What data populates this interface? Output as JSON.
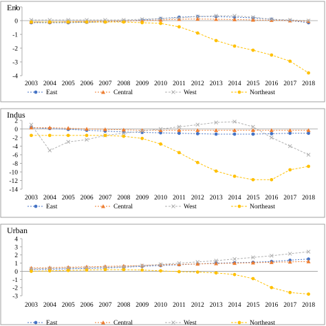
{
  "chart_data": [
    {
      "type": "line",
      "title": "Eno",
      "categories": [
        "2003",
        "2004",
        "2005",
        "2006",
        "2007",
        "2008",
        "2009",
        "2010",
        "2011",
        "2012",
        "2013",
        "2014",
        "2015",
        "2016",
        "2017",
        "2018"
      ],
      "ylim": [
        -4,
        1
      ],
      "yticks": [
        1,
        0,
        -1,
        -2,
        -3,
        -4
      ],
      "series": [
        {
          "name": "East",
          "color": "#4472c4",
          "marker": "circle",
          "dash": "2,2",
          "values": [
            -0.15,
            -0.15,
            -0.15,
            -0.12,
            -0.1,
            -0.05,
            0.05,
            0.15,
            0.25,
            0.3,
            0.3,
            0.25,
            0.2,
            0.1,
            0.0,
            -0.15
          ]
        },
        {
          "name": "Central",
          "color": "#ed7d31",
          "marker": "triangle",
          "dash": "2,2",
          "values": [
            -0.1,
            -0.1,
            -0.08,
            -0.06,
            -0.05,
            -0.03,
            0.0,
            0.05,
            0.1,
            0.12,
            0.1,
            0.08,
            0.05,
            0.03,
            0.0,
            -0.05
          ]
        },
        {
          "name": "West",
          "color": "#b0b0b0",
          "marker": "x",
          "dash": "3,2",
          "values": [
            0.05,
            0.05,
            0.05,
            0.05,
            0.05,
            0.05,
            0.1,
            0.15,
            0.2,
            0.3,
            0.35,
            0.35,
            0.25,
            0.1,
            0.05,
            0.0
          ]
        },
        {
          "name": "Northeast",
          "color": "#ffc000",
          "marker": "circle",
          "dash": "3,2",
          "values": [
            -0.1,
            -0.1,
            -0.1,
            -0.1,
            -0.1,
            -0.1,
            -0.15,
            -0.2,
            -0.45,
            -0.9,
            -1.45,
            -1.85,
            -2.15,
            -2.5,
            -2.95,
            -3.8
          ]
        }
      ]
    },
    {
      "type": "line",
      "title": "Indus",
      "categories": [
        "2003",
        "2004",
        "2005",
        "2006",
        "2007",
        "2008",
        "2009",
        "2010",
        "2011",
        "2012",
        "2013",
        "2014",
        "2015",
        "2016",
        "2017",
        "2018"
      ],
      "ylim": [
        -14,
        2
      ],
      "yticks": [
        2,
        0,
        -2,
        -4,
        -6,
        -8,
        -10,
        -12,
        -14
      ],
      "series": [
        {
          "name": "East",
          "color": "#4472c4",
          "marker": "circle",
          "dash": "2,2",
          "values": [
            0.3,
            0.1,
            -0.1,
            -0.3,
            -0.5,
            -0.7,
            -0.8,
            -0.9,
            -1.0,
            -1.1,
            -1.2,
            -1.2,
            -1.2,
            -1.1,
            -1.0,
            -1.0
          ]
        },
        {
          "name": "Central",
          "color": "#ed7d31",
          "marker": "triangle",
          "dash": "2,2",
          "values": [
            0.3,
            0.3,
            0.2,
            0.0,
            -0.1,
            -0.2,
            -0.3,
            -0.3,
            -0.3,
            -0.3,
            -0.3,
            -0.3,
            -0.3,
            -0.3,
            -0.3,
            -0.3
          ]
        },
        {
          "name": "West",
          "color": "#b0b0b0",
          "marker": "x",
          "dash": "3,2",
          "values": [
            1.0,
            -5.0,
            -3.0,
            -2.5,
            -1.5,
            -1.0,
            -0.5,
            0.0,
            0.5,
            1.0,
            1.5,
            1.7,
            0.5,
            -2.0,
            -4.0,
            -6.0
          ]
        },
        {
          "name": "Northeast",
          "color": "#ffc000",
          "marker": "circle",
          "dash": "3,2",
          "values": [
            -1.5,
            -1.5,
            -1.5,
            -1.5,
            -1.5,
            -1.7,
            -2.2,
            -3.5,
            -5.5,
            -7.8,
            -9.8,
            -11.0,
            -11.8,
            -11.8,
            -9.5,
            -8.7
          ]
        }
      ]
    },
    {
      "type": "line",
      "title": "Urban",
      "categories": [
        "2003",
        "2004",
        "2005",
        "2006",
        "2007",
        "2008",
        "2009",
        "2010",
        "2011",
        "2012",
        "2013",
        "2014",
        "2015",
        "2016",
        "2017",
        "2018"
      ],
      "ylim": [
        -3,
        4
      ],
      "yticks": [
        4,
        3,
        2,
        1,
        0,
        -1,
        -2,
        -3
      ],
      "series": [
        {
          "name": "East",
          "color": "#4472c4",
          "marker": "circle",
          "dash": "2,2",
          "values": [
            0.2,
            0.25,
            0.3,
            0.35,
            0.4,
            0.5,
            0.6,
            0.7,
            0.8,
            0.9,
            1.0,
            1.05,
            1.1,
            1.2,
            1.35,
            1.5
          ]
        },
        {
          "name": "Central",
          "color": "#ed7d31",
          "marker": "triangle",
          "dash": "2,2",
          "values": [
            0.4,
            0.45,
            0.5,
            0.55,
            0.6,
            0.65,
            0.7,
            0.8,
            0.85,
            0.9,
            0.95,
            1.0,
            1.05,
            1.1,
            1.15,
            1.2
          ]
        },
        {
          "name": "West",
          "color": "#b0b0b0",
          "marker": "x",
          "dash": "3,2",
          "values": [
            0.3,
            0.35,
            0.4,
            0.45,
            0.5,
            0.55,
            0.7,
            0.85,
            1.0,
            1.15,
            1.3,
            1.5,
            1.7,
            1.9,
            2.15,
            2.4
          ]
        },
        {
          "name": "Northeast",
          "color": "#ffc000",
          "marker": "circle",
          "dash": "3,2",
          "values": [
            0.0,
            0.05,
            0.1,
            0.15,
            0.2,
            0.2,
            0.15,
            0.05,
            -0.05,
            -0.1,
            -0.2,
            -0.4,
            -0.9,
            -2.0,
            -2.6,
            -2.8
          ]
        }
      ]
    }
  ]
}
